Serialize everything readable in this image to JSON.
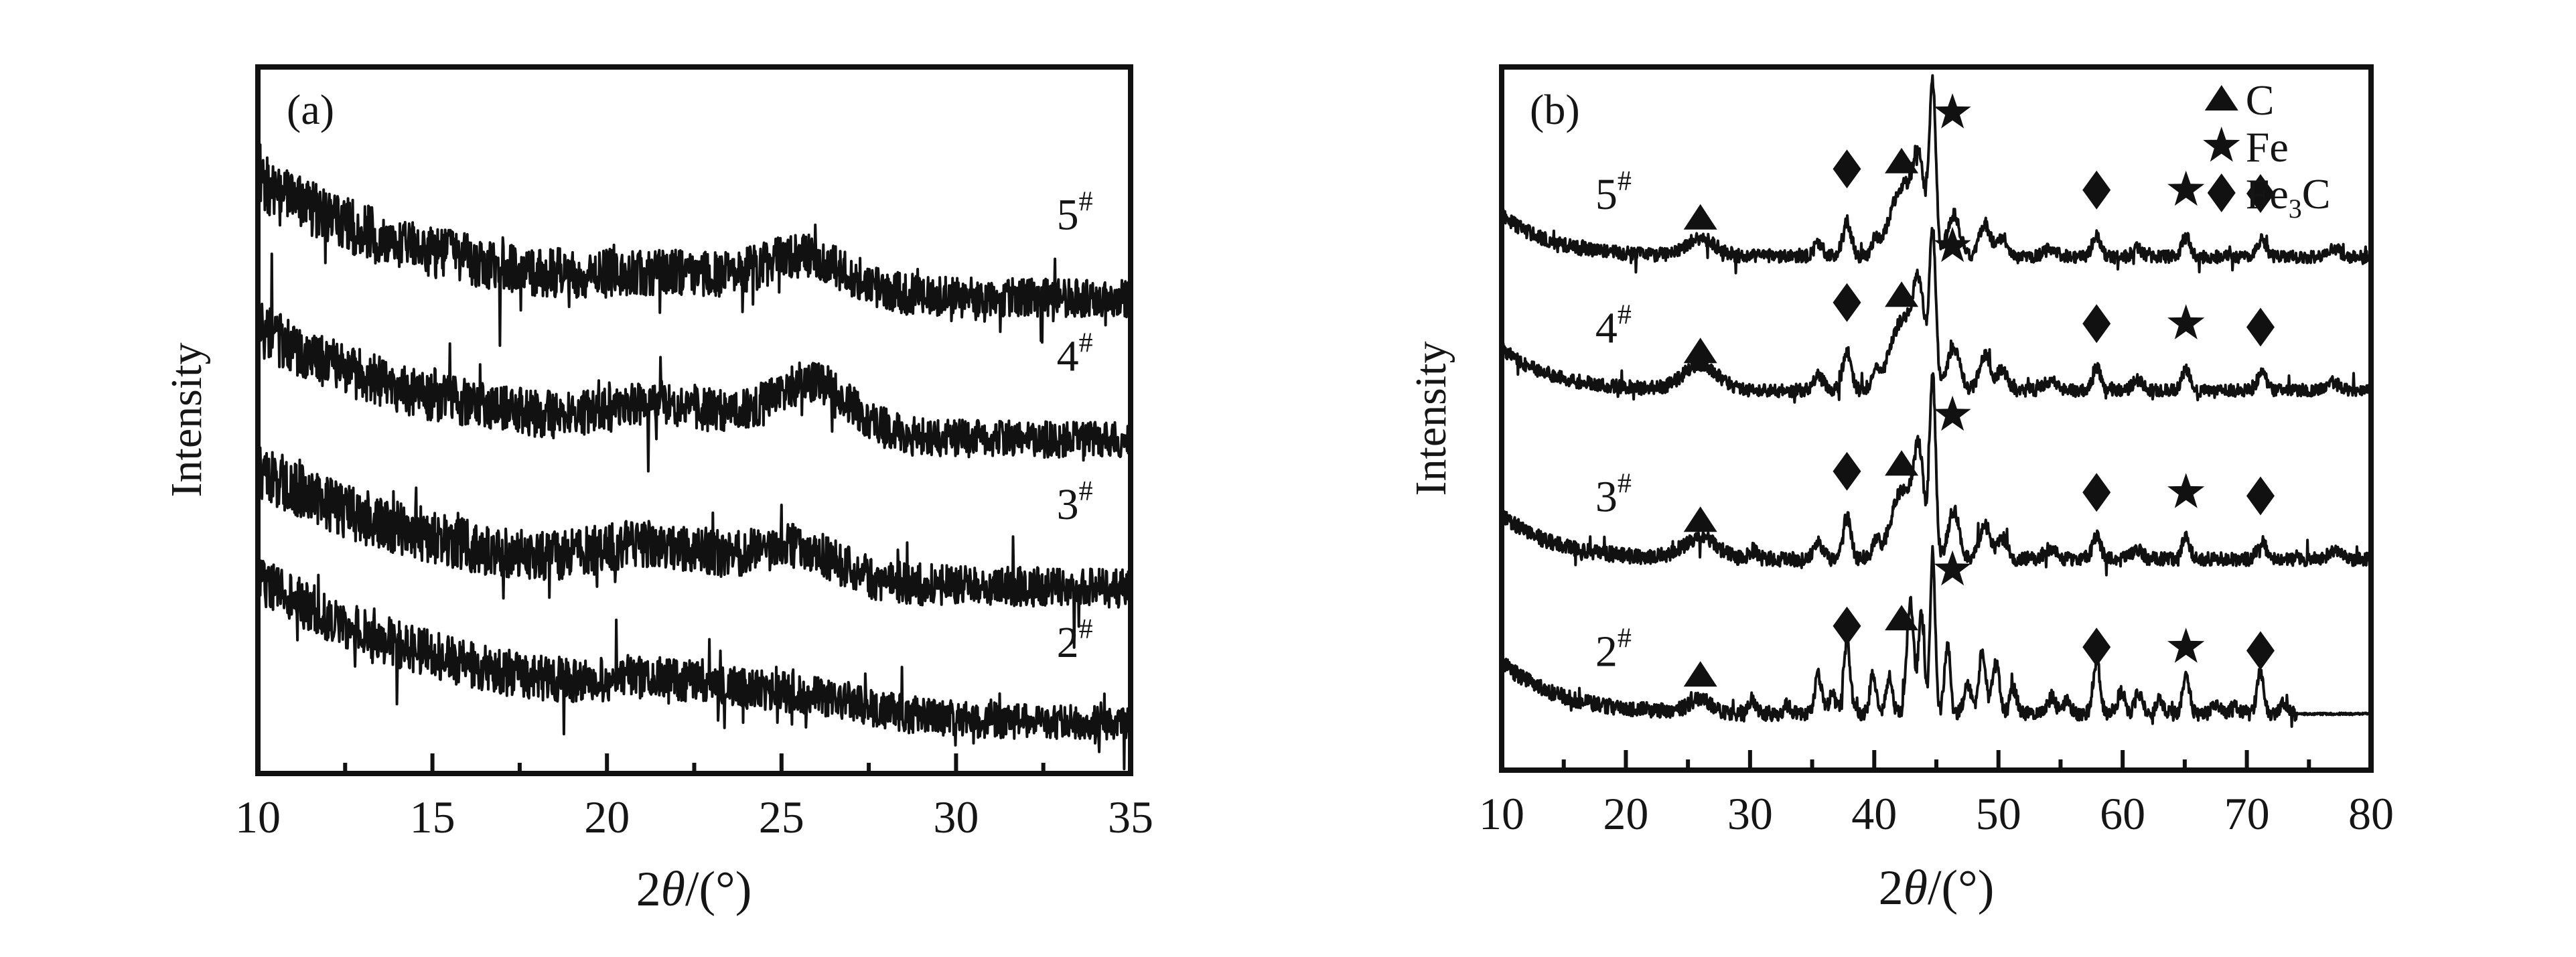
{
  "figure": {
    "background": "#ffffff",
    "ink_color": "#111111"
  },
  "chart_data": [
    {
      "id": "a",
      "type": "line",
      "title": "(a)",
      "xlabel": "2θ/(°)",
      "ylabel": "Intensity",
      "xlim": [
        10,
        35
      ],
      "xticks": [
        10,
        15,
        20,
        25,
        30,
        35
      ],
      "minor_tick_step": 2.5,
      "grid": false,
      "yaxis_scale": "arbitrary (no numeric ticks)",
      "noise_taper": 0.35,
      "series_label_x": 33.4,
      "series_label_dy": 0.1,
      "series": [
        {
          "name": "5#",
          "baseline": 0.67,
          "left_rise": 0.17,
          "left_tau": 5.5,
          "noise": 0.04,
          "humps": [
            [
              22.0,
              0.02,
              1.8
            ],
            [
              25.7,
              0.05,
              1.2
            ]
          ]
        },
        {
          "name": "4#",
          "baseline": 0.47,
          "left_rise": 0.16,
          "left_tau": 5.5,
          "noise": 0.038,
          "humps": [
            [
              21.8,
              0.035,
              1.6
            ],
            [
              25.9,
              0.075,
              1.1
            ]
          ]
        },
        {
          "name": "3#",
          "baseline": 0.26,
          "left_rise": 0.17,
          "left_tau": 6.0,
          "noise": 0.04,
          "humps": [
            [
              21.5,
              0.04,
              1.7
            ],
            [
              25.4,
              0.045,
              1.2
            ]
          ]
        },
        {
          "name": "2#",
          "baseline": 0.065,
          "left_rise": 0.21,
          "left_tau": 7.0,
          "noise": 0.036,
          "humps": [
            [
              22.0,
              0.03,
              2.0
            ],
            [
              26.0,
              0.02,
              1.5
            ]
          ]
        }
      ]
    },
    {
      "id": "b",
      "type": "line",
      "title": "(b)",
      "xlabel": "2θ/(°)",
      "ylabel": "Intensity",
      "xlim": [
        10,
        80
      ],
      "xticks": [
        10,
        20,
        30,
        40,
        50,
        60,
        70,
        80
      ],
      "minor_tick_step": 5,
      "grid": false,
      "yaxis_scale": "arbitrary (no numeric ticks)",
      "noise_taper": 0.15,
      "series_label_x": 19,
      "series_label_dy": 0.068,
      "peak_markers": [
        [
          26.0,
          "triangle",
          0.055
        ],
        [
          37.8,
          "diamond",
          0.125
        ],
        [
          42.2,
          "triangle",
          0.135
        ],
        [
          46.3,
          "star",
          0.205
        ],
        [
          57.9,
          "diamond",
          0.095
        ],
        [
          65.1,
          "star",
          0.095
        ],
        [
          71.1,
          "diamond",
          0.09
        ]
      ],
      "legend": {
        "entries": [
          {
            "marker": "triangle",
            "label": "C",
            "parts": [
              [
                "C",
                0
              ]
            ]
          },
          {
            "marker": "star",
            "label": "Fe",
            "parts": [
              [
                "Fe",
                0
              ]
            ]
          },
          {
            "marker": "diamond",
            "label": "Fe3C",
            "parts": [
              [
                "Fe",
                0
              ],
              [
                "3",
                1
              ],
              [
                "C",
                0
              ]
            ]
          }
        ]
      },
      "series": [
        {
          "name": "5#",
          "baseline": 0.73,
          "left_rise": 0.06,
          "left_tau": 4.0,
          "noise": 0.01,
          "humps": [
            [
              26,
              0.025,
              1.2
            ],
            [
              35.5,
              0.018,
              0.4
            ],
            [
              37.8,
              0.05,
              0.35
            ],
            [
              40.1,
              0.02,
              0.3
            ],
            [
              42.3,
              0.1,
              1.0
            ],
            [
              43.6,
              0.11,
              0.45
            ],
            [
              44.7,
              0.24,
              0.26
            ],
            [
              46.4,
              0.06,
              0.5
            ],
            [
              48.9,
              0.045,
              0.45
            ],
            [
              50.3,
              0.028,
              0.4
            ],
            [
              54.2,
              0.012,
              0.5
            ],
            [
              57.9,
              0.03,
              0.35
            ],
            [
              61.2,
              0.012,
              0.4
            ],
            [
              65.1,
              0.028,
              0.35
            ],
            [
              71.2,
              0.024,
              0.35
            ],
            [
              77.0,
              0.012,
              0.5
            ]
          ]
        },
        {
          "name": "4#",
          "baseline": 0.54,
          "left_rise": 0.06,
          "left_tau": 4.0,
          "noise": 0.01,
          "humps": [
            [
              26,
              0.035,
              1.4
            ],
            [
              35.5,
              0.02,
              0.4
            ],
            [
              37.8,
              0.055,
              0.35
            ],
            [
              40.1,
              0.02,
              0.3
            ],
            [
              42.3,
              0.1,
              1.0
            ],
            [
              43.6,
              0.12,
              0.45
            ],
            [
              44.7,
              0.22,
              0.26
            ],
            [
              46.4,
              0.06,
              0.5
            ],
            [
              48.9,
              0.05,
              0.45
            ],
            [
              50.3,
              0.03,
              0.4
            ],
            [
              54.2,
              0.014,
              0.5
            ],
            [
              57.9,
              0.032,
              0.35
            ],
            [
              61.2,
              0.014,
              0.4
            ],
            [
              65.1,
              0.03,
              0.35
            ],
            [
              71.2,
              0.026,
              0.35
            ],
            [
              77.0,
              0.012,
              0.5
            ]
          ]
        },
        {
          "name": "3#",
          "baseline": 0.3,
          "left_rise": 0.065,
          "left_tau": 4.0,
          "noise": 0.011,
          "humps": [
            [
              26,
              0.03,
              1.3
            ],
            [
              30.2,
              0.012,
              0.35
            ],
            [
              35.5,
              0.025,
              0.35
            ],
            [
              37.8,
              0.06,
              0.32
            ],
            [
              40.1,
              0.025,
              0.3
            ],
            [
              42.3,
              0.1,
              0.9
            ],
            [
              43.6,
              0.13,
              0.4
            ],
            [
              44.7,
              0.26,
              0.24
            ],
            [
              46.4,
              0.07,
              0.45
            ],
            [
              48.9,
              0.05,
              0.4
            ],
            [
              50.3,
              0.03,
              0.4
            ],
            [
              54.2,
              0.015,
              0.5
            ],
            [
              57.9,
              0.035,
              0.32
            ],
            [
              61.2,
              0.015,
              0.4
            ],
            [
              65.1,
              0.032,
              0.32
            ],
            [
              71.2,
              0.028,
              0.32
            ],
            [
              77.0,
              0.012,
              0.5
            ]
          ]
        },
        {
          "name": "2#",
          "baseline": 0.08,
          "left_rise": 0.075,
          "left_tau": 4.5,
          "noise": 0.011,
          "flat_after": 74,
          "humps": [
            [
              26,
              0.02,
              0.9
            ],
            [
              30.2,
              0.02,
              0.3
            ],
            [
              33.0,
              0.012,
              0.3
            ],
            [
              35.5,
              0.055,
              0.28
            ],
            [
              36.6,
              0.03,
              0.25
            ],
            [
              37.8,
              0.1,
              0.28
            ],
            [
              39.9,
              0.055,
              0.25
            ],
            [
              41.2,
              0.055,
              0.25
            ],
            [
              42.9,
              0.16,
              0.28
            ],
            [
              43.8,
              0.14,
              0.24
            ],
            [
              44.7,
              0.23,
              0.2
            ],
            [
              45.9,
              0.1,
              0.24
            ],
            [
              47.5,
              0.04,
              0.3
            ],
            [
              48.7,
              0.09,
              0.28
            ],
            [
              49.8,
              0.075,
              0.28
            ],
            [
              51.2,
              0.035,
              0.3
            ],
            [
              54.3,
              0.025,
              0.3
            ],
            [
              55.5,
              0.02,
              0.3
            ],
            [
              57.9,
              0.075,
              0.28
            ],
            [
              59.9,
              0.03,
              0.3
            ],
            [
              61.3,
              0.03,
              0.3
            ],
            [
              63.0,
              0.02,
              0.3
            ],
            [
              65.1,
              0.055,
              0.28
            ],
            [
              67.5,
              0.015,
              0.3
            ],
            [
              69.0,
              0.015,
              0.3
            ],
            [
              71.1,
              0.06,
              0.28
            ],
            [
              73.0,
              0.015,
              0.3
            ]
          ]
        }
      ]
    }
  ]
}
